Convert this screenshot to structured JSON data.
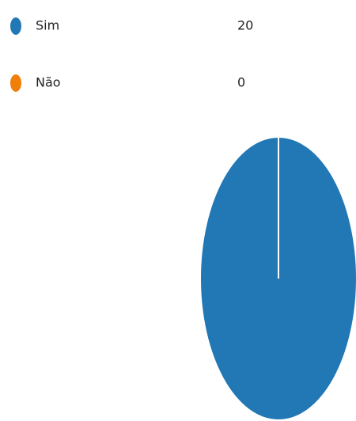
{
  "chart_data": {
    "type": "pie",
    "categories": [
      "Sim",
      "Não"
    ],
    "values": [
      20,
      0
    ],
    "colors": [
      "#2178b4",
      "#f07f09"
    ]
  }
}
